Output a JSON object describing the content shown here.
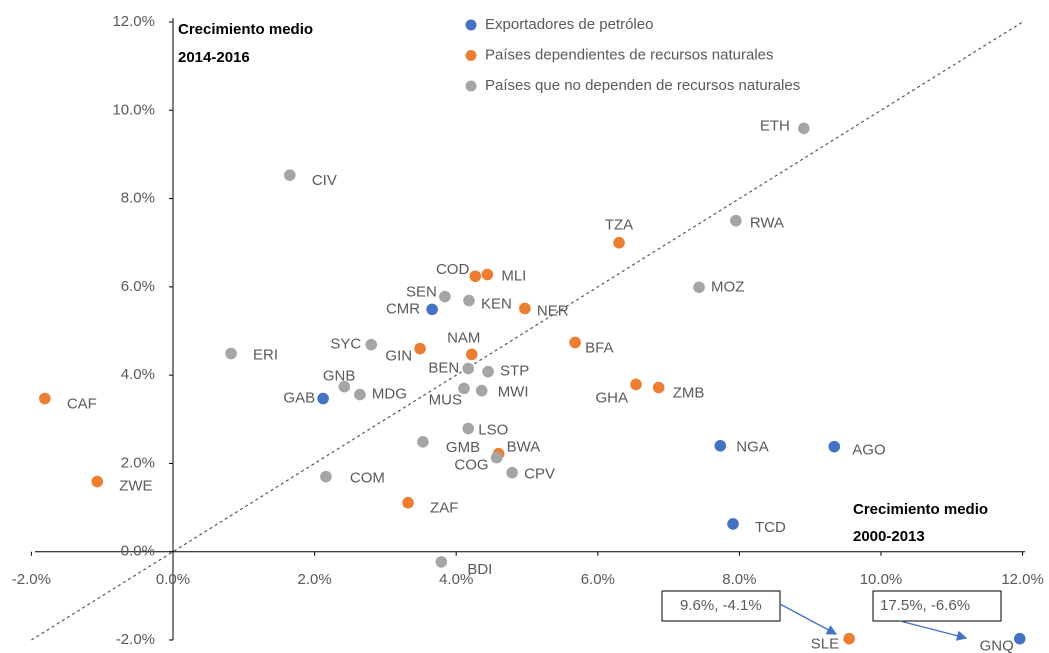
{
  "chart_data": {
    "type": "scatter",
    "x_label": [
      "Crecimiento medio",
      "2000-2013"
    ],
    "y_label": [
      "Crecimiento medio",
      "2014-2016"
    ],
    "xlim": [
      -2,
      12
    ],
    "ylim": [
      -2,
      12
    ],
    "xticks": [
      {
        "value": -2,
        "label": "-2.0%"
      },
      {
        "value": 0,
        "label": "0.0%"
      },
      {
        "value": 2,
        "label": "2.0%"
      },
      {
        "value": 4,
        "label": "4.0%"
      },
      {
        "value": 6,
        "label": "6.0%"
      },
      {
        "value": 8,
        "label": "8.0%"
      },
      {
        "value": 10,
        "label": "10.0%"
      },
      {
        "value": 12,
        "label": "12.0%"
      }
    ],
    "yticks": [
      {
        "value": -2,
        "label": "-2.0%"
      },
      {
        "value": 0,
        "label": "0.0%"
      },
      {
        "value": 2,
        "label": "2.0%"
      },
      {
        "value": 4,
        "label": "4.0%"
      },
      {
        "value": 6,
        "label": "6.0%"
      },
      {
        "value": 8,
        "label": "8.0%"
      },
      {
        "value": 10,
        "label": "10.0%"
      },
      {
        "value": 12,
        "label": "12.0%"
      }
    ],
    "grid": false,
    "series": [
      {
        "name": "Exportadores de petróleo",
        "color": "#4472c4",
        "labels": [
          "CMR",
          "GAB",
          "NGA",
          "AGO",
          "TCD",
          "GNQ"
        ],
        "x": [
          3.66,
          2.12,
          7.73,
          9.34,
          7.91,
          11.96
        ],
        "y": [
          5.49,
          3.47,
          2.4,
          2.38,
          0.63,
          -1.97
        ]
      },
      {
        "name": "Países dependientes de recursos naturales",
        "color": "#ed7d31",
        "labels": [
          "TZA",
          "COD",
          "MLI",
          "NER",
          "GIN",
          "NAM",
          "BFA",
          "GHA",
          "ZMB",
          "CAF",
          "BWA",
          "ZWE",
          "ZAF",
          "SLE"
        ],
        "x": [
          6.3,
          4.27,
          4.44,
          4.97,
          3.49,
          4.22,
          5.68,
          6.54,
          6.86,
          -1.81,
          4.6,
          -1.07,
          3.32,
          9.55
        ],
        "y": [
          7.0,
          6.24,
          6.28,
          5.51,
          4.6,
          4.47,
          4.74,
          3.79,
          3.72,
          3.47,
          2.22,
          1.59,
          1.11,
          -1.97
        ]
      },
      {
        "name": "Países que no dependen de recursos naturales",
        "color": "#a5a5a5",
        "labels": [
          "ETH",
          "CIV",
          "RWA",
          "SEN",
          "MOZ",
          "KEN",
          "ERI",
          "SYC",
          "BEN",
          "STP",
          "GNB",
          "MDG",
          "MUS",
          "MWI",
          "LSO",
          "GMB",
          "COG",
          "CPV",
          "COM",
          "BDI"
        ],
        "x": [
          8.91,
          1.65,
          7.95,
          3.84,
          7.43,
          4.18,
          0.82,
          2.8,
          4.17,
          4.45,
          2.42,
          2.64,
          4.11,
          4.36,
          4.17,
          3.53,
          4.57,
          4.79,
          2.16,
          3.79
        ],
        "y": [
          9.59,
          8.53,
          7.5,
          5.78,
          5.99,
          5.69,
          4.49,
          4.69,
          4.15,
          4.08,
          3.74,
          3.56,
          3.7,
          3.65,
          2.79,
          2.49,
          2.13,
          1.79,
          1.7,
          -0.23
        ]
      }
    ],
    "annotations": [
      "9.6%, -4.1%",
      "17.5%, -6.6%"
    ]
  }
}
